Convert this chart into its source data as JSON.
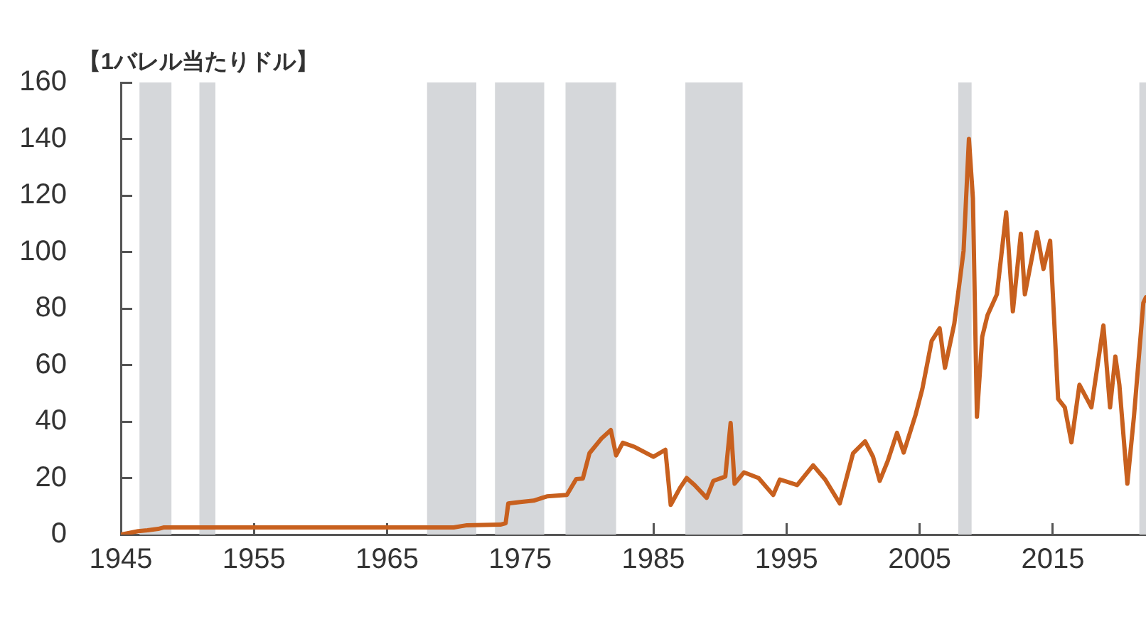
{
  "chart_data": {
    "type": "line",
    "ylabel": "【1バレル当たりドル】",
    "xlim": [
      1945,
      2022
    ],
    "xticks": [
      1945,
      1955,
      1965,
      1975,
      1985,
      1995,
      2005,
      2015
    ],
    "ylim": [
      0,
      160
    ],
    "yticks": [
      0,
      20,
      40,
      60,
      80,
      100,
      120,
      140,
      160
    ],
    "grid": false,
    "legend": false,
    "marker": "none",
    "line_style": "solid",
    "bands": [
      {
        "axis": "x",
        "from": 1946.4,
        "to": 1948.8,
        "color": "#d5d7da"
      },
      {
        "axis": "x",
        "from": 1950.9,
        "to": 1952.1,
        "color": "#d5d7da"
      },
      {
        "axis": "x",
        "from": 1968.0,
        "to": 1971.7,
        "color": "#d5d7da"
      },
      {
        "axis": "x",
        "from": 1973.1,
        "to": 1976.8,
        "color": "#d5d7da"
      },
      {
        "axis": "x",
        "from": 1978.4,
        "to": 1982.2,
        "color": "#d5d7da"
      },
      {
        "axis": "x",
        "from": 1987.4,
        "to": 1991.7,
        "color": "#d5d7da"
      },
      {
        "axis": "x",
        "from": 2007.9,
        "to": 2008.9,
        "color": "#d5d7da"
      },
      {
        "axis": "x",
        "from": 2021.5,
        "to": 2022,
        "color": "#d5d7da"
      }
    ],
    "series": [
      {
        "color": "#c8601e",
        "x": [
          1945,
          1946.3,
          1947,
          1947.8,
          1948.2,
          1960,
          1970,
          1971,
          1973.5,
          1973.9,
          1974.1,
          1975,
          1976,
          1977,
          1978.5,
          1979.2,
          1979.7,
          1980.2,
          1981.1,
          1981.8,
          1982.2,
          1982.7,
          1983.6,
          1985.0,
          1985.9,
          1986.3,
          1987.0,
          1987.5,
          1988.1,
          1989.0,
          1989.5,
          1990.4,
          1990.8,
          1991.1,
          1991.8,
          1992.9,
          1994.0,
          1994.5,
          1995.8,
          1997.0,
          1997.9,
          1999.0,
          2000.0,
          2000.9,
          2001.5,
          2002.0,
          2002.6,
          2003.3,
          2003.8,
          2004.7,
          2005.2,
          2005.9,
          2006.5,
          2006.9,
          2007.6,
          2008.3,
          2008.7,
          2009.0,
          2009.3,
          2009.7,
          2010.1,
          2010.8,
          2011.5,
          2012.0,
          2012.6,
          2012.9,
          2013.8,
          2014.3,
          2014.8,
          2015.4,
          2015.9,
          2016.4,
          2017.0,
          2017.9,
          2018.8,
          2019.3,
          2019.7,
          2020.0,
          2020.6,
          2021.1,
          2021.8,
          2022.0
        ],
        "values": [
          0,
          1.2,
          1.5,
          2,
          2.5,
          2.5,
          2.5,
          3.3,
          3.5,
          4,
          11,
          11.5,
          12,
          13.5,
          14,
          19.6,
          19.8,
          28.8,
          34,
          37,
          28,
          32.5,
          31,
          27.5,
          30,
          10.5,
          16.5,
          20,
          17.5,
          13,
          19,
          20.5,
          39.5,
          18,
          22,
          20,
          14,
          19.5,
          17.5,
          24.5,
          19.5,
          11,
          28.8,
          33,
          27.5,
          19,
          26,
          36,
          29,
          42.5,
          51.5,
          68.5,
          73,
          59,
          74.6,
          100.5,
          140,
          119,
          41.7,
          70,
          77.7,
          85,
          114,
          79,
          106.5,
          85,
          107,
          94,
          104,
          48,
          45,
          32.6,
          53,
          45,
          74,
          45,
          63,
          53,
          18,
          42,
          82,
          84
        ]
      }
    ]
  }
}
